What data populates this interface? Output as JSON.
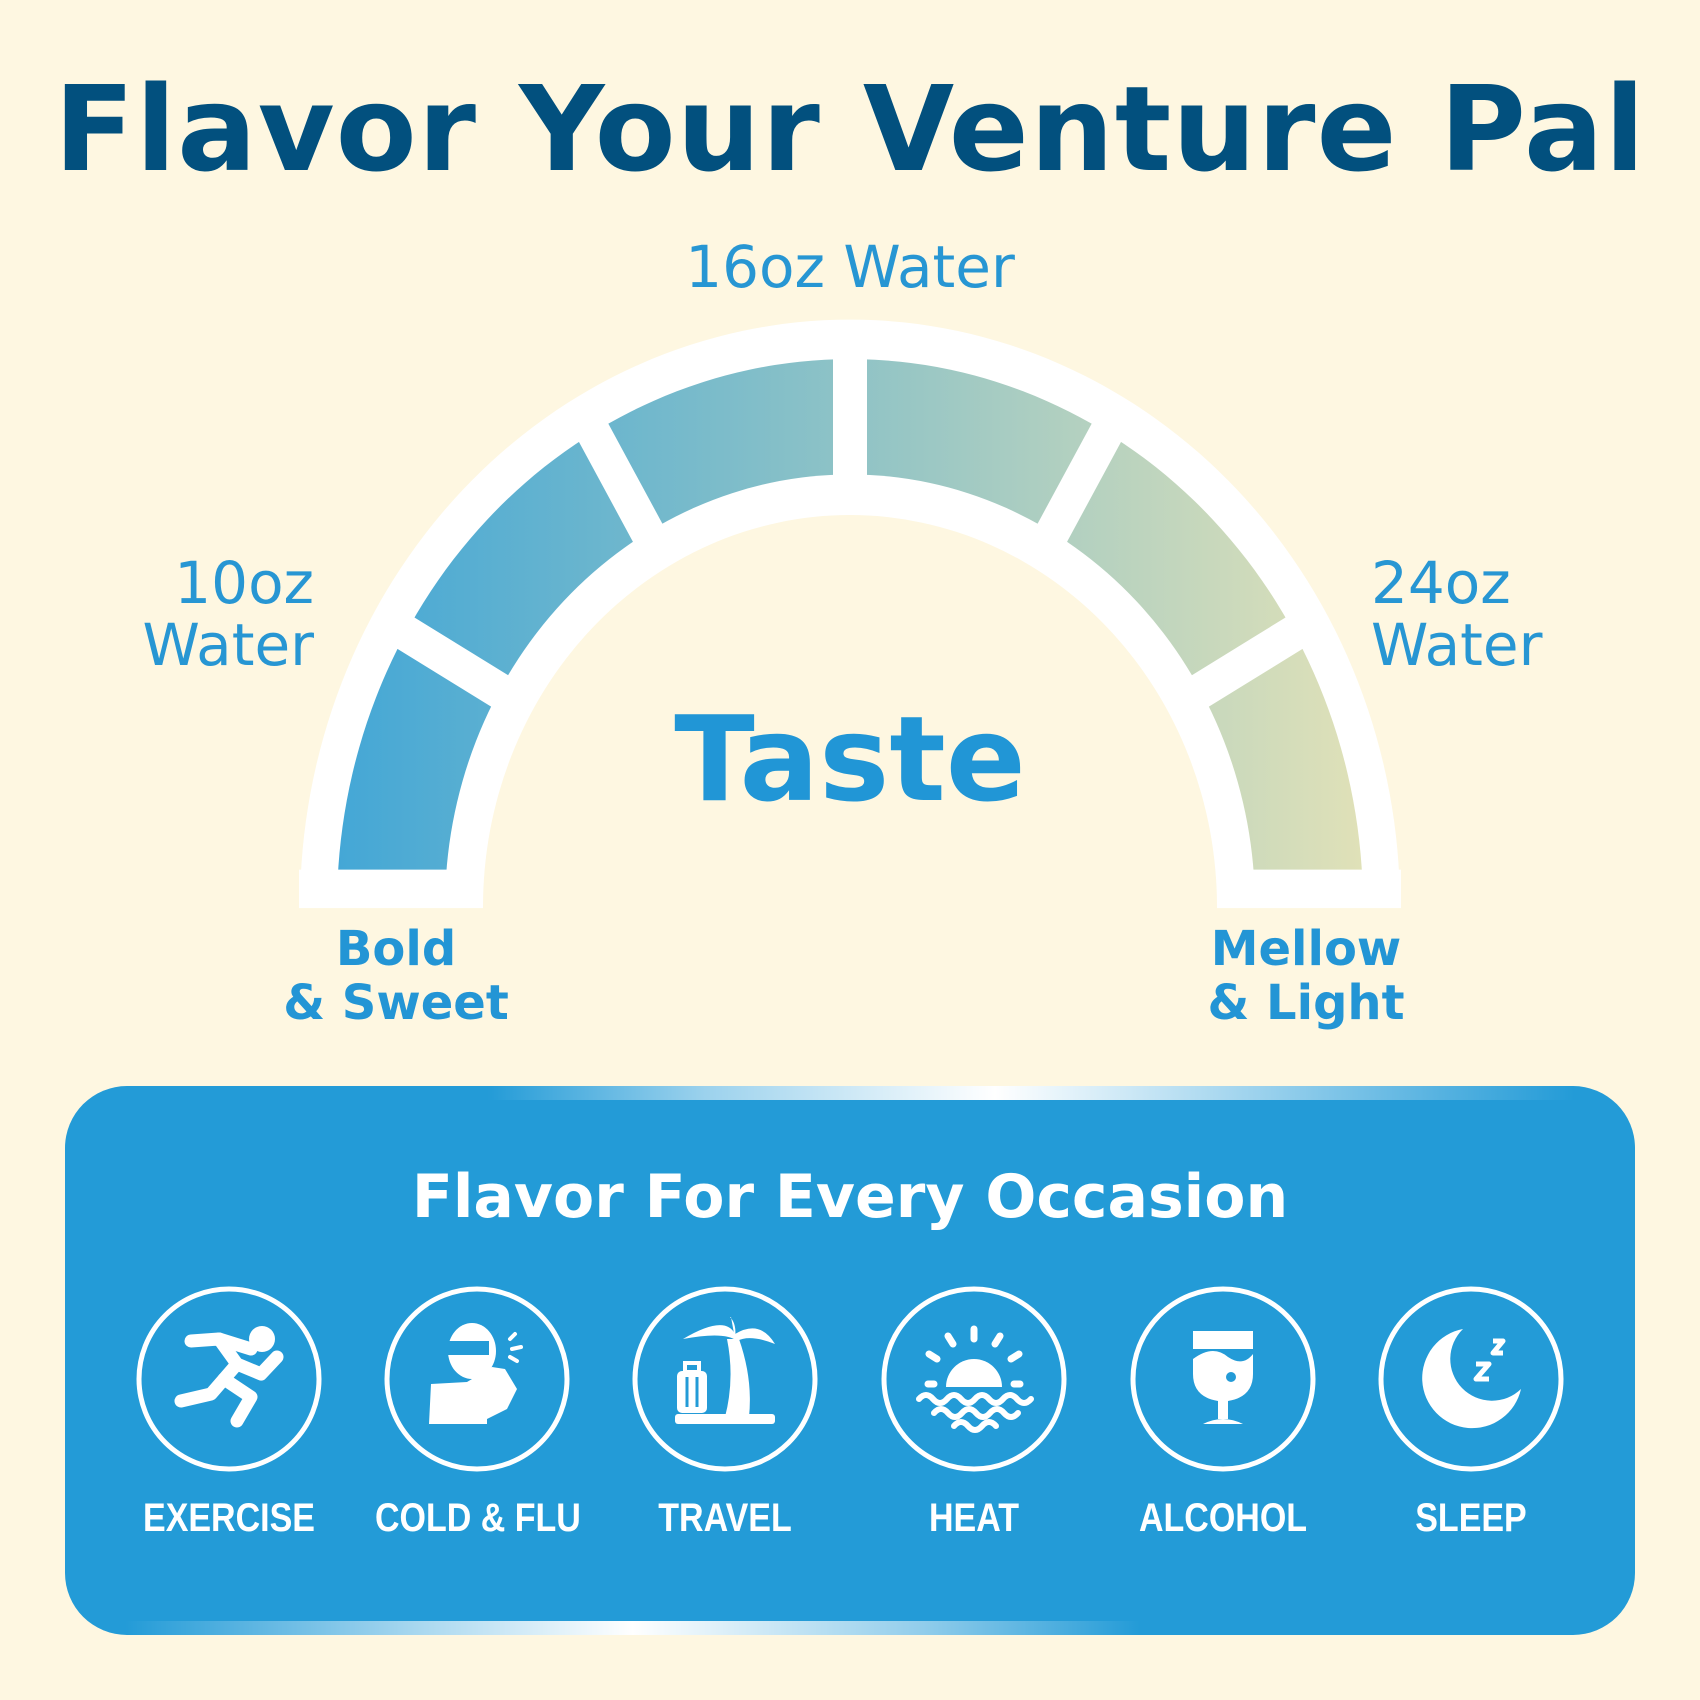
{
  "title": "Flavor Your Venture Pal",
  "gauge": {
    "center_label": "Taste",
    "top_label": "16oz Water",
    "left_label": {
      "line1": "10oz",
      "line2": "Water"
    },
    "right_label": {
      "line1": "24oz",
      "line2": "Water"
    },
    "left_end": {
      "line1": "Bold",
      "line2": "& Sweet"
    },
    "right_end": {
      "line1": "Mellow",
      "line2": "& Light"
    },
    "segments": 6,
    "colors": {
      "start": "#44a7d6",
      "mid": "#8fc3c6",
      "end": "#e0e1b8"
    }
  },
  "occasions": {
    "title": "Flavor For Every Occasion",
    "background": "#239bd7",
    "items": [
      {
        "label": "EXERCISE",
        "icon": "running-person-icon"
      },
      {
        "label": "COLD & FLU",
        "icon": "sick-person-icon"
      },
      {
        "label": "TRAVEL",
        "icon": "palm-tree-suitcase-icon"
      },
      {
        "label": "HEAT",
        "icon": "sun-waves-icon"
      },
      {
        "label": "ALCOHOL",
        "icon": "wine-glass-icon"
      },
      {
        "label": "SLEEP",
        "icon": "moon-zzz-icon"
      }
    ]
  },
  "colors": {
    "background": "#fef7e1",
    "title": "#02507e",
    "accent": "#2196d6"
  }
}
